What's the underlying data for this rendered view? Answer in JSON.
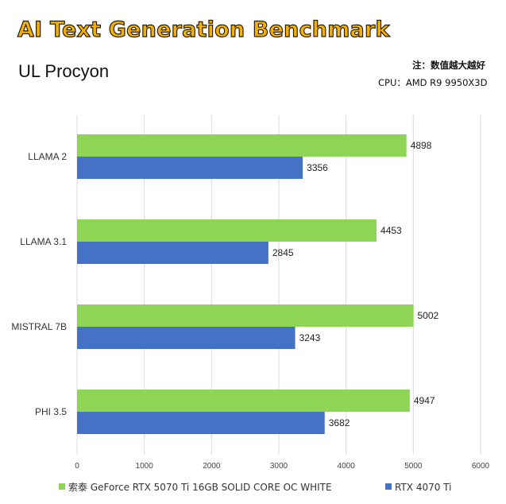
{
  "header": {
    "title": "AI Text Generation Benchmark",
    "subtitle": "UL Procyon",
    "note": "注：数值越大越好",
    "cpu": "CPU：AMD R9 9950X3D"
  },
  "colors": {
    "title": "#f1b10a",
    "series_green": "#8ed555",
    "series_blue": "#4472c4",
    "grid": "#d9d9d9"
  },
  "chart_data": {
    "type": "bar",
    "orientation": "horizontal",
    "categories": [
      "LLAMA 2",
      "LLAMA 3.1",
      "MISTRAL 7B",
      "PHI 3.5"
    ],
    "series": [
      {
        "name": "索泰 GeForce RTX 5070 Ti 16GB SOLID CORE OC WHITE",
        "color": "#8ed555",
        "values": [
          4898,
          4453,
          5002,
          4947
        ]
      },
      {
        "name": "RTX 4070 Ti",
        "color": "#4472c4",
        "values": [
          3356,
          2845,
          3243,
          3682
        ]
      }
    ],
    "xlim": [
      0,
      6000
    ],
    "xticks": [
      0,
      1000,
      2000,
      3000,
      4000,
      5000,
      6000
    ],
    "grid": true,
    "legend_position": "bottom"
  }
}
